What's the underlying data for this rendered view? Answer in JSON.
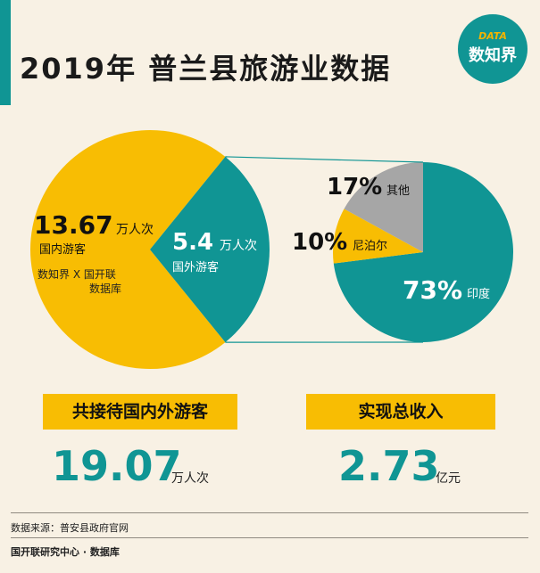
{
  "title": "2019年 普兰县旅游业数据",
  "logo": {
    "top": "DATA",
    "main": "数知界"
  },
  "chart_data": [
    {
      "type": "pie",
      "slices": [
        {
          "value": 13.67,
          "number": "13.67",
          "unit": "万人次",
          "label": "国内游客",
          "color": "#f8bd03"
        },
        {
          "value": 5.4,
          "number": "5.4",
          "unit": "万人次",
          "label": "国外游客",
          "color": "#109594"
        }
      ],
      "watermark": [
        "数知界 X 国开联",
        "数据库"
      ]
    },
    {
      "type": "pie",
      "slices": [
        {
          "value": 73,
          "number": "73%",
          "label": "印度",
          "color": "#109594"
        },
        {
          "value": 10,
          "number": "10%",
          "label": "尼泊尔",
          "color": "#f8bd03"
        },
        {
          "value": 17,
          "number": "17%",
          "label": "其他",
          "color": "#a6a6a6"
        }
      ]
    }
  ],
  "stats": [
    {
      "label": "共接待国内外游客",
      "value": "19.07",
      "unit": "万人次"
    },
    {
      "label": "实现总收入",
      "value": "2.73",
      "unit": "亿元"
    }
  ],
  "footer": {
    "source": "数据来源：普安县政府官网",
    "org": "国开联研究中心 · 数据库"
  }
}
